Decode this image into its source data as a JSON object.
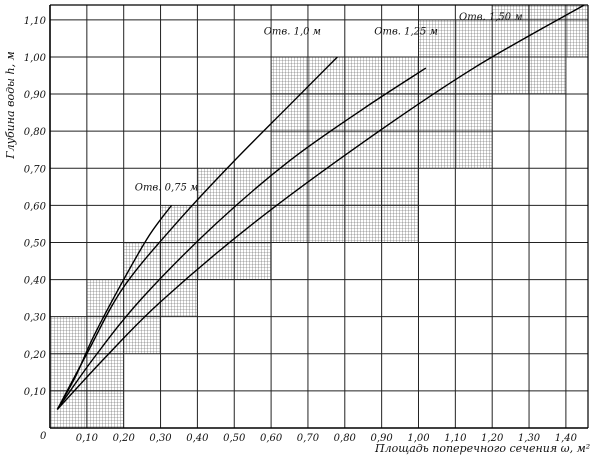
{
  "chart_data": {
    "type": "line",
    "title": "",
    "xlabel": "Площадь поперечного сечения ω, м²",
    "ylabel": "Глубина воды h, м",
    "xlim": [
      0,
      1.46
    ],
    "ylim": [
      0,
      1.14
    ],
    "origin_label": "0",
    "x_ticks": [
      0.1,
      0.2,
      0.3,
      0.4,
      0.5,
      0.6,
      0.7,
      0.8,
      0.9,
      1.0,
      1.1,
      1.2,
      1.3,
      1.4
    ],
    "x_tick_labels": [
      "0,10",
      "0,20",
      "0,30",
      "0,40",
      "0,50",
      "0,60",
      "0,70",
      "0,80",
      "0,90",
      "1,00",
      "1,10",
      "1,20",
      "1,30",
      "1,40"
    ],
    "y_ticks": [
      0.1,
      0.2,
      0.3,
      0.4,
      0.5,
      0.6,
      0.7,
      0.8,
      0.9,
      1.0,
      1.1
    ],
    "y_tick_labels": [
      "0,10",
      "0,20",
      "0,30",
      "0,40",
      "0,50",
      "0,60",
      "0,70",
      "0,80",
      "0,90",
      "1,00",
      "1,10"
    ],
    "grid": true,
    "series": [
      {
        "name": "Отв. 0,75 м",
        "label_x": 0.23,
        "label_y": 0.64,
        "points": [
          [
            0.02,
            0.05
          ],
          [
            0.07,
            0.14
          ],
          [
            0.12,
            0.25
          ],
          [
            0.2,
            0.4
          ],
          [
            0.27,
            0.52
          ],
          [
            0.33,
            0.6
          ]
        ]
      },
      {
        "name": "Отв. 1,0 м",
        "label_x": 0.58,
        "label_y": 1.06,
        "points": [
          [
            0.02,
            0.05
          ],
          [
            0.1,
            0.2
          ],
          [
            0.2,
            0.38
          ],
          [
            0.35,
            0.56
          ],
          [
            0.5,
            0.72
          ],
          [
            0.65,
            0.87
          ],
          [
            0.78,
            1.0
          ]
        ]
      },
      {
        "name": "Отв. 1,25 м",
        "label_x": 0.88,
        "label_y": 1.06,
        "points": [
          [
            0.02,
            0.05
          ],
          [
            0.12,
            0.19
          ],
          [
            0.25,
            0.35
          ],
          [
            0.45,
            0.55
          ],
          [
            0.65,
            0.72
          ],
          [
            0.85,
            0.86
          ],
          [
            1.02,
            0.97
          ]
        ]
      },
      {
        "name": "Отв. 1,50 м",
        "label_x": 1.11,
        "label_y": 1.1,
        "points": [
          [
            0.02,
            0.05
          ],
          [
            0.15,
            0.19
          ],
          [
            0.3,
            0.34
          ],
          [
            0.55,
            0.55
          ],
          [
            0.85,
            0.77
          ],
          [
            1.15,
            0.97
          ],
          [
            1.45,
            1.14
          ]
        ]
      }
    ]
  }
}
